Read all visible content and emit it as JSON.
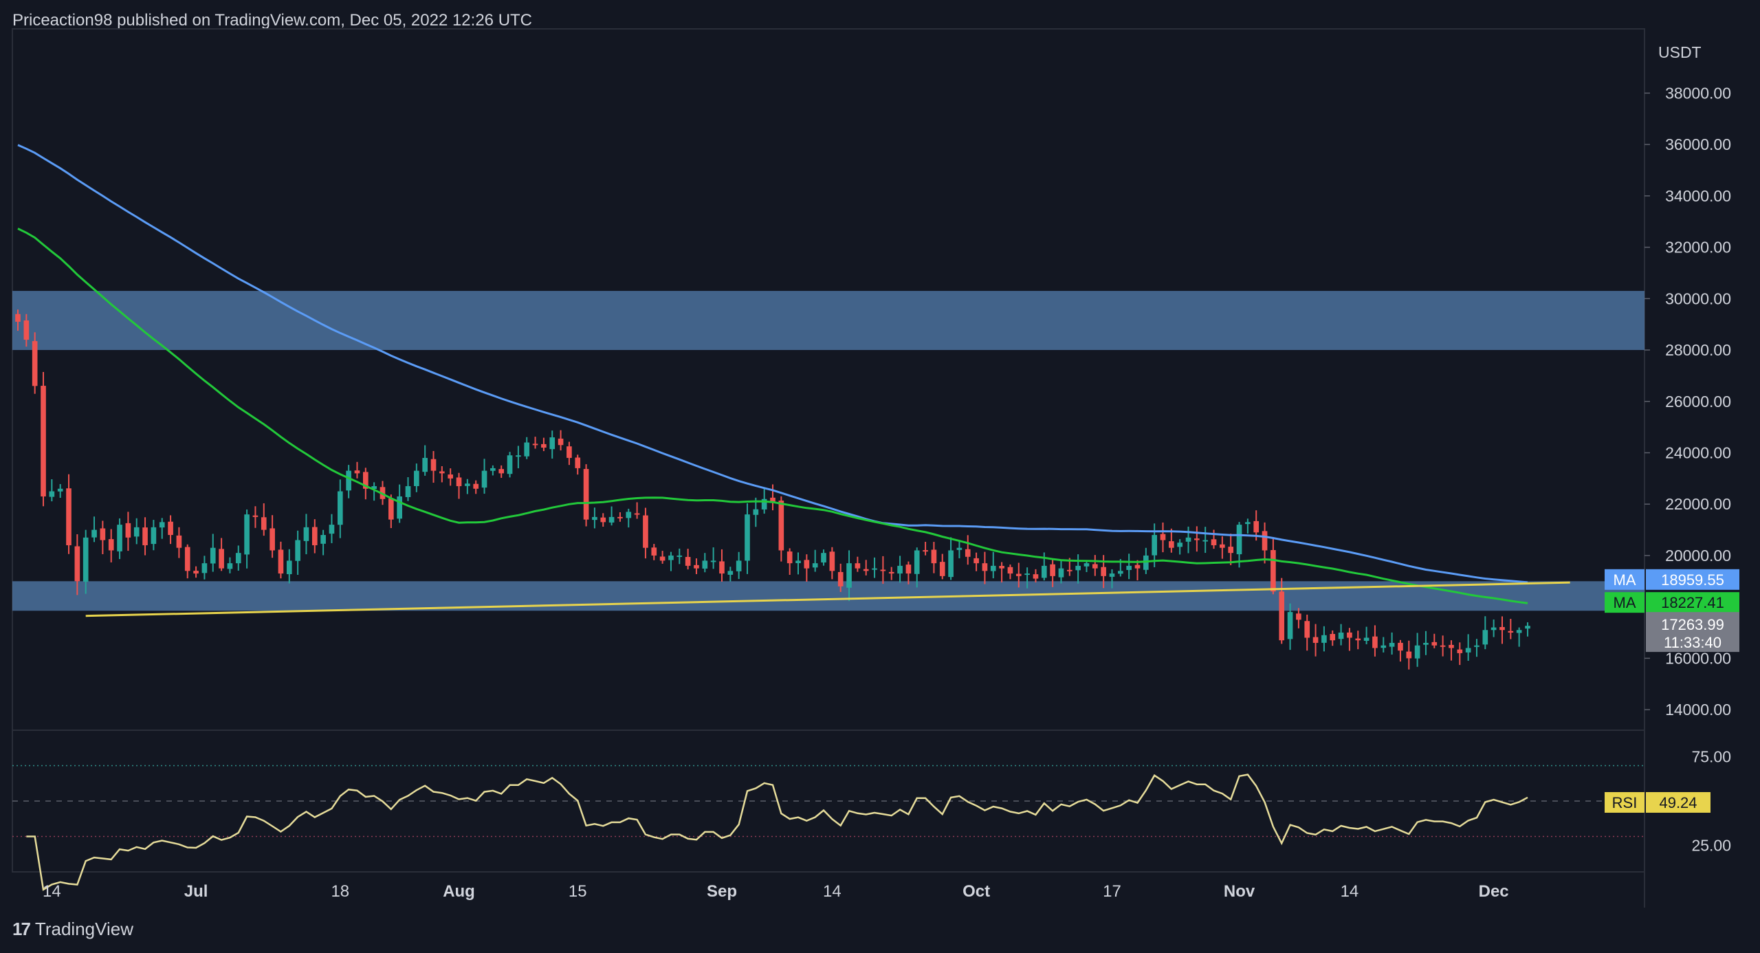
{
  "header": {
    "text": "Priceaction98 published on TradingView.com, Dec 05, 2022 12:26 UTC"
  },
  "brand": {
    "logo_icon": "tradingview-logo-icon",
    "text": "TradingView"
  },
  "colors": {
    "background": "#131722",
    "grid": "#2a2e39",
    "up": "#26a69a",
    "down": "#ef5350",
    "ma_long": "#5b9cf6",
    "ma_short": "#22c93a",
    "trendline": "#e8d44d",
    "rsi": "#e6dc9a",
    "zone": "#5079a8"
  },
  "chart_data": [
    {
      "type": "candlestick",
      "currency": "USDT",
      "y_ticks": [
        "38000.00",
        "36000.00",
        "34000.00",
        "32000.00",
        "30000.00",
        "28000.00",
        "26000.00",
        "24000.00",
        "22000.00",
        "20000.00",
        "16000.00",
        "14000.00"
      ],
      "ylim": [
        13200,
        40500
      ],
      "x_tick_labels": [
        {
          "label": "14",
          "date": "2022-06-14"
        },
        {
          "label": "Jul",
          "date": "2022-07-01"
        },
        {
          "label": "18",
          "date": "2022-07-18"
        },
        {
          "label": "Aug",
          "date": "2022-08-01"
        },
        {
          "label": "15",
          "date": "2022-08-15"
        },
        {
          "label": "Sep",
          "date": "2022-09-01"
        },
        {
          "label": "14",
          "date": "2022-09-14"
        },
        {
          "label": "Oct",
          "date": "2022-10-01"
        },
        {
          "label": "17",
          "date": "2022-10-17"
        },
        {
          "label": "Nov",
          "date": "2022-11-01"
        },
        {
          "label": "14",
          "date": "2022-11-14"
        },
        {
          "label": "Dec",
          "date": "2022-12-01"
        }
      ],
      "first_date": "2022-06-10",
      "last_price_date": "2022-12-05",
      "close_values": [
        29100,
        28400,
        26600,
        22300,
        22500,
        22600,
        20400,
        19000,
        20700,
        21000,
        20600,
        20200,
        21200,
        20700,
        21100,
        20400,
        21100,
        21300,
        20800,
        20300,
        19400,
        19300,
        19700,
        20300,
        19500,
        19700,
        20100,
        21600,
        21500,
        21000,
        20200,
        19300,
        19800,
        20600,
        21100,
        20400,
        20800,
        21200,
        22500,
        23300,
        23200,
        22600,
        22700,
        22200,
        21400,
        22300,
        22700,
        23300,
        23800,
        23300,
        23200,
        23000,
        22700,
        22800,
        22600,
        23300,
        23400,
        23200,
        23900,
        23900,
        24400,
        24300,
        24200,
        24600,
        24300,
        23800,
        23400,
        21400,
        21500,
        21300,
        21500,
        21500,
        21700,
        21600,
        20300,
        20000,
        19800,
        20000,
        20000,
        19600,
        19500,
        19800,
        19800,
        19300,
        19400,
        19800,
        21600,
        21800,
        22200,
        22100,
        20200,
        19700,
        19800,
        19500,
        19700,
        20100,
        19400,
        18800,
        19700,
        19500,
        19400,
        19500,
        19400,
        19300,
        19600,
        19300,
        20200,
        20200,
        19700,
        19200,
        20200,
        20300,
        19950,
        19700,
        19400,
        19600,
        19500,
        19300,
        19200,
        19300,
        19100,
        19600,
        19200,
        19500,
        19400,
        19600,
        19700,
        19500,
        19200,
        19300,
        19400,
        19600,
        19500,
        20000,
        20800,
        20600,
        20300,
        20500,
        20700,
        20600,
        20600,
        20400,
        20300,
        20100,
        21200,
        21300,
        20900,
        20200,
        18600,
        16700,
        17800,
        17500,
        16800,
        16600,
        16900,
        16700,
        17000,
        16800,
        16700,
        16800,
        16400,
        16500,
        16600,
        16300,
        16000,
        16500,
        16600,
        16500,
        16500,
        16400,
        16200,
        16400,
        16500,
        17100,
        17200,
        17100,
        17000,
        17100,
        17263.99
      ],
      "ma_long": {
        "label": "MA",
        "value": "18959.55"
      },
      "ma_short": {
        "label": "MA",
        "value": "18227.41"
      },
      "last_price": {
        "value": "17263.99",
        "countdown": "11:33:40"
      },
      "zones": [
        [
          28000,
          30300
        ],
        [
          17850,
          19000
        ]
      ],
      "trendline": [
        {
          "date": "2022-06-18",
          "price": 17650
        },
        {
          "date": "2022-12-10",
          "price": 18950
        }
      ]
    },
    {
      "type": "line",
      "name": "RSI",
      "value": "49.24",
      "y_ticks": [
        "75.00",
        "25.00"
      ],
      "ylim": [
        10,
        90
      ],
      "levels": [
        70,
        50,
        30
      ]
    }
  ]
}
